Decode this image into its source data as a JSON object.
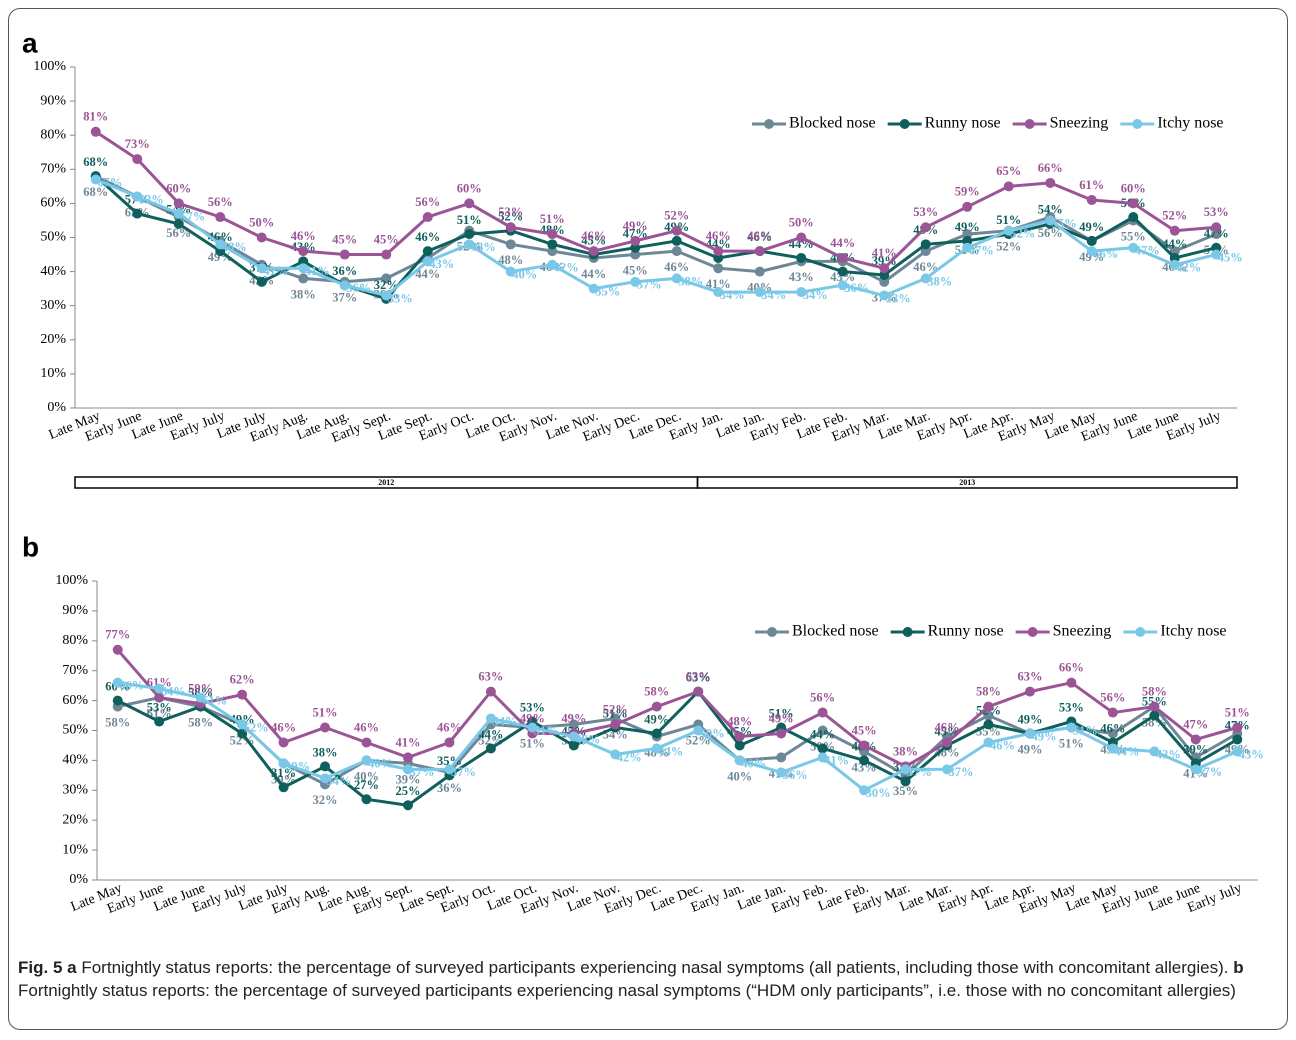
{
  "chart_data": [
    {
      "type": "line",
      "panel": "a",
      "categories": [
        "Late May",
        "Early June",
        "Late June",
        "Early July",
        "Late July",
        "Early Aug.",
        "Late Aug.",
        "Early Sept.",
        "Late Sept.",
        "Early Oct.",
        "Late Oct.",
        "Early Nov.",
        "Late Nov.",
        "Early Dec.",
        "Late Dec.",
        "Early Jan.",
        "Late Jan.",
        "Early Feb.",
        "Late Feb.",
        "Early Mar.",
        "Late Mar.",
        "Early Apr.",
        "Late Apr.",
        "Early May",
        "Late May",
        "Early June",
        "Late June",
        "Early July"
      ],
      "periods": [
        "2012",
        "2013"
      ],
      "ylim": [
        0,
        100
      ],
      "yticks": [
        {
          "value": 0,
          "label": "0%"
        },
        {
          "value": 10,
          "label": "10%"
        },
        {
          "value": 20,
          "label": "20%"
        },
        {
          "value": 30,
          "label": "30%"
        },
        {
          "value": 40,
          "label": "40%"
        },
        {
          "value": 50,
          "label": "50%"
        },
        {
          "value": 60,
          "label": "60%"
        },
        {
          "value": 70,
          "label": "70%"
        },
        {
          "value": 80,
          "label": "80%"
        },
        {
          "value": 90,
          "label": "90%"
        },
        {
          "value": 100,
          "label": "100%"
        }
      ],
      "legend": "upper right",
      "series": [
        {
          "name": "Blocked nose",
          "color": "#6e8796",
          "values": [
            68,
            62,
            56,
            49,
            42,
            38,
            37,
            38,
            44,
            52,
            48,
            46,
            44,
            45,
            46,
            41,
            40,
            43,
            43,
            37,
            46,
            51,
            52,
            56,
            49,
            55,
            46,
            51
          ],
          "value_labels": [
            "68%",
            "62%",
            "56%",
            "49%",
            "42%",
            "38%",
            "37%",
            "38%",
            "44%",
            "52%",
            "48%",
            "46%",
            "44%",
            "45%",
            "46%",
            "41%",
            "40%",
            "43%",
            "43%",
            "37%",
            "46%",
            "51%",
            "52%",
            "56%",
            "49%",
            "55%",
            "46%",
            "51%"
          ]
        },
        {
          "name": "Runny nose",
          "color": "#0f5f5c",
          "values": [
            68,
            57,
            54,
            46,
            37,
            43,
            36,
            32,
            46,
            51,
            52,
            48,
            45,
            47,
            49,
            44,
            46,
            44,
            40,
            39,
            48,
            49,
            51,
            54,
            49,
            56,
            44,
            47
          ],
          "value_labels": [
            "68%",
            "57%",
            "54%",
            "46%",
            "37%",
            "43%",
            "36%",
            "32%",
            "46%",
            "51%",
            "52%",
            "48%",
            "45%",
            "47%",
            "49%",
            "44%",
            "46%",
            "44%",
            "40%",
            "39%",
            "48%",
            "49%",
            "51%",
            "54%",
            "49%",
            "56%",
            "44%",
            "47%"
          ]
        },
        {
          "name": "Sneezing",
          "color": "#9b5495",
          "values": [
            81,
            73,
            60,
            56,
            50,
            46,
            45,
            45,
            56,
            60,
            53,
            51,
            46,
            49,
            52,
            46,
            46,
            50,
            44,
            41,
            53,
            59,
            65,
            66,
            61,
            60,
            52,
            53
          ],
          "value_labels": [
            "81%",
            "73%",
            "60%",
            "56%",
            "50%",
            "46%",
            "45%",
            "45%",
            "56%",
            "60%",
            "53%",
            "51%",
            "46%",
            "49%",
            "52%",
            "46%",
            "46%",
            "50%",
            "44%",
            "41%",
            "53%",
            "59%",
            "65%",
            "66%",
            "61%",
            "60%",
            "52%",
            "53%"
          ]
        },
        {
          "name": "Itchy nose",
          "color": "#7ac8e8",
          "values": [
            67,
            62,
            57,
            48,
            41,
            41,
            36,
            33,
            43,
            48,
            40,
            42,
            35,
            37,
            38,
            34,
            34,
            34,
            36,
            33,
            38,
            47,
            52,
            55,
            46,
            47,
            42,
            45
          ],
          "value_labels": [
            "67%",
            "62%",
            "57%",
            "48%",
            "41%",
            "41%",
            "36%",
            "33%",
            "43%",
            "48%",
            "40%",
            "42%",
            "35%",
            "37%",
            "38%",
            "34%",
            "34%",
            "34%",
            "36%",
            "33%",
            "38%",
            "47%",
            "52%",
            "55%",
            "46%",
            "47%",
            "42%",
            "45%"
          ]
        }
      ]
    },
    {
      "type": "line",
      "panel": "b",
      "categories": [
        "Late May",
        "Early June",
        "Late June",
        "Early July",
        "Late July",
        "Early Aug.",
        "Late Aug.",
        "Early Sept.",
        "Late Sept.",
        "Early Oct.",
        "Late Oct.",
        "Early Nov.",
        "Late Nov.",
        "Early Dec.",
        "Late Dec.",
        "Early Jan.",
        "Late Jan.",
        "Early Feb.",
        "Late Feb.",
        "Early Mar.",
        "Late Mar.",
        "Early Apr.",
        "Late Apr.",
        "Early May",
        "Late May",
        "Early June",
        "Late June",
        "Early July"
      ],
      "ylim": [
        0,
        100
      ],
      "yticks": [
        {
          "value": 0,
          "label": "0%"
        },
        {
          "value": 10,
          "label": "10%"
        },
        {
          "value": 20,
          "label": "20%"
        },
        {
          "value": 30,
          "label": "30%"
        },
        {
          "value": 40,
          "label": "40%"
        },
        {
          "value": 50,
          "label": "50%"
        },
        {
          "value": 60,
          "label": "60%"
        },
        {
          "value": 70,
          "label": "70%"
        },
        {
          "value": 80,
          "label": "80%"
        },
        {
          "value": 90,
          "label": "90%"
        },
        {
          "value": 100,
          "label": "100%"
        }
      ],
      "legend": "upper right",
      "series": [
        {
          "name": "Blocked nose",
          "color": "#6e8796",
          "values": [
            58,
            61,
            58,
            52,
            39,
            32,
            40,
            39,
            36,
            52,
            51,
            52,
            54,
            48,
            52,
            40,
            41,
            50,
            43,
            35,
            48,
            55,
            49,
            51,
            49,
            58,
            41,
            49
          ],
          "value_labels": [
            "58%",
            "61%",
            "58%",
            "52%",
            "39%",
            "32%",
            "40%",
            "39%",
            "36%",
            "52%",
            "51%",
            "52%",
            "54%",
            "48%",
            "52%",
            "40%",
            "41%",
            "50%",
            "43%",
            "35%",
            "48%",
            "55%",
            "49%",
            "51%",
            "49%",
            "58%",
            "41%",
            "49%"
          ]
        },
        {
          "name": "Runny nose",
          "color": "#0f5f5c",
          "values": [
            60,
            53,
            58,
            49,
            31,
            38,
            27,
            25,
            35,
            44,
            53,
            45,
            51,
            49,
            63,
            45,
            51,
            44,
            40,
            33,
            45,
            52,
            49,
            53,
            46,
            55,
            39,
            47
          ],
          "value_labels": [
            "60%",
            "53%",
            "58%",
            "49%",
            "31%",
            "38%",
            "27%",
            "25%",
            "35%",
            "44%",
            "53%",
            "45%",
            "51%",
            "49%",
            "63%",
            "45%",
            "51%",
            "44%",
            "40%",
            "33%",
            "45%",
            "52%",
            "49%",
            "53%",
            "46%",
            "55%",
            "39%",
            "47%"
          ]
        },
        {
          "name": "Sneezing",
          "color": "#9b5495",
          "values": [
            77,
            61,
            59,
            62,
            46,
            51,
            46,
            41,
            46,
            63,
            49,
            49,
            52,
            58,
            63,
            48,
            49,
            56,
            45,
            38,
            46,
            58,
            63,
            66,
            56,
            58,
            47,
            51
          ],
          "value_labels": [
            "77%",
            "61%",
            "59%",
            "62%",
            "46%",
            "51%",
            "46%",
            "41%",
            "46%",
            "63%",
            "49%",
            "49%",
            "52%",
            "58%",
            "63%",
            "48%",
            "49%",
            "56%",
            "45%",
            "38%",
            "46%",
            "58%",
            "63%",
            "66%",
            "56%",
            "58%",
            "47%",
            "51%"
          ]
        },
        {
          "name": "Itchy nose",
          "color": "#7ac8e8",
          "values": [
            66,
            64,
            61,
            52,
            39,
            34,
            40,
            37,
            37,
            54,
            51,
            48,
            42,
            44,
            50,
            40,
            36,
            41,
            30,
            37,
            37,
            46,
            49,
            51,
            44,
            43,
            37,
            43
          ],
          "value_labels": [
            "66%",
            "64%",
            "61%",
            "52%",
            "39%",
            "34%",
            "40%",
            "37%",
            "37%",
            "54%",
            "51%",
            "48%",
            "42%",
            "44%",
            "50%",
            "40%",
            "36%",
            "41%",
            "30%",
            "37%",
            "37%",
            "46%",
            "49%",
            "51%",
            "44%",
            "43%",
            "37%",
            "43%"
          ]
        }
      ]
    }
  ],
  "caption": {
    "label": "Fig. 5",
    "panels": [
      {
        "letter": "a",
        "text": "Fortnightly status reports: the percentage of surveyed participants experiencing nasal symptoms (all patients, including those with concomitant allergies)."
      },
      {
        "letter": "b",
        "text": "Fortnightly status reports: the percentage of surveyed participants experiencing nasal symptoms (“HDM only participants”, i.e. those with no concomitant allergies)"
      }
    ]
  }
}
